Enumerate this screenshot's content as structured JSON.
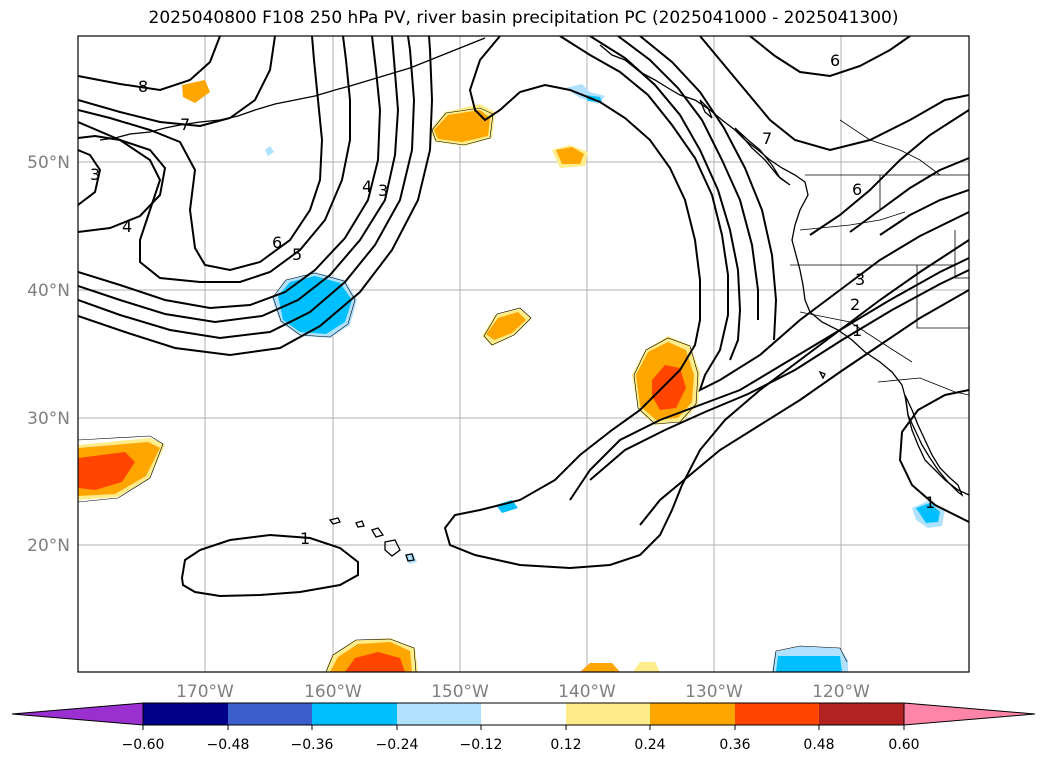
{
  "title": "2025040800 F108 250 hPa PV, river basin precipitation PC (2025041000 - 2025041300)",
  "map": {
    "lat_labels": [
      "50°N",
      "40°N",
      "30°N",
      "20°N"
    ],
    "lon_labels": [
      "170°W",
      "160°W",
      "150°W",
      "140°W",
      "130°W",
      "120°W"
    ]
  },
  "colorbar": {
    "colors": [
      "#9b30d0",
      "#00008b",
      "#3a5fcd",
      "#00bfff",
      "#b0e2ff",
      "#ffffff",
      "#ffec8b",
      "#ffa500",
      "#ff4500",
      "#b22222",
      "#ff85a8"
    ],
    "labels": [
      "−0.60",
      "−0.48",
      "−0.36",
      "−0.24",
      "−0.12",
      "0.12",
      "0.24",
      "0.36",
      "0.48",
      "0.60"
    ]
  },
  "pv_contour_labels": [
    "8",
    "7",
    "3",
    "4",
    "6",
    "5",
    "4",
    "3",
    "6",
    "7",
    "6",
    "3",
    "2",
    "1",
    "1",
    "1"
  ]
}
